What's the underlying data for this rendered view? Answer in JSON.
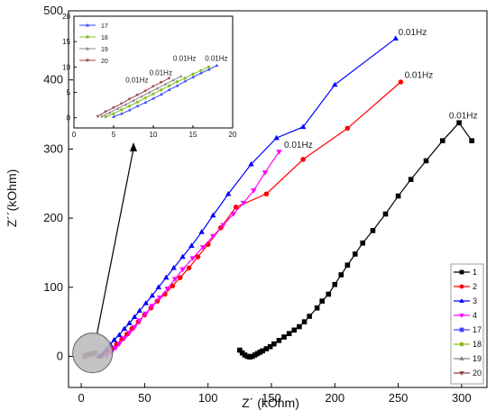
{
  "chart_data": {
    "type": "line",
    "xlabel": "Z´ (kOhm)",
    "ylabel": "Z´´(kOhm)",
    "xlim": [
      -10,
      320
    ],
    "ylim": [
      -45,
      500
    ],
    "xticks": [
      0,
      50,
      100,
      150,
      200,
      250,
      300
    ],
    "yticks": [
      0,
      100,
      200,
      300,
      400,
      500
    ],
    "legend_position": "bottom-right",
    "series": [
      {
        "name": "1",
        "color": "#000000",
        "marker": "square",
        "x": [
          125,
          127,
          129,
          131,
          133,
          135,
          137,
          139,
          141,
          143,
          146,
          149,
          152,
          156,
          160,
          164,
          168,
          172,
          176,
          180,
          186,
          190,
          195,
          200,
          205,
          210,
          216,
          222,
          230,
          240,
          250,
          260,
          272,
          285,
          298,
          308
        ],
        "y": [
          9,
          5,
          2,
          0,
          -1,
          0,
          2,
          4,
          6,
          8,
          11,
          14,
          18,
          23,
          28,
          33,
          38,
          43,
          50,
          58,
          70,
          80,
          90,
          104,
          118,
          132,
          148,
          164,
          182,
          206,
          232,
          256,
          283,
          312,
          338,
          312
        ]
      },
      {
        "name": "2",
        "color": "#ff0000",
        "marker": "circle",
        "x": [
          16,
          20,
          24,
          28,
          32,
          36,
          40,
          45,
          50,
          55,
          60,
          66,
          72,
          78,
          85,
          92,
          100,
          110,
          122,
          146,
          175,
          210,
          252
        ],
        "y": [
          1,
          6,
          12,
          18,
          25,
          32,
          40,
          50,
          60,
          70,
          80,
          90,
          102,
          114,
          128,
          144,
          162,
          186,
          216,
          235,
          285,
          330,
          397
        ]
      },
      {
        "name": "3",
        "color": "#0000ff",
        "marker": "triangle-up",
        "x": [
          14,
          17,
          20,
          23,
          26,
          30,
          34,
          38,
          42,
          46,
          51,
          56,
          61,
          67,
          73,
          80,
          87,
          95,
          104,
          116,
          134,
          154,
          175,
          200,
          248
        ],
        "y": [
          0,
          4,
          10,
          17,
          24,
          31,
          40,
          48,
          57,
          66,
          77,
          88,
          100,
          114,
          128,
          144,
          160,
          180,
          204,
          235,
          278,
          316,
          332,
          393,
          460
        ]
      },
      {
        "name": "4",
        "color": "#ff00ff",
        "marker": "triangle-down",
        "x": [
          20,
          24,
          27,
          30,
          34,
          38,
          42,
          46,
          51,
          56,
          62,
          68,
          74,
          80,
          88,
          96,
          104,
          112,
          120,
          128,
          136,
          145,
          156
        ],
        "y": [
          1,
          6,
          12,
          18,
          26,
          34,
          42,
          52,
          62,
          73,
          85,
          98,
          112,
          126,
          142,
          158,
          174,
          190,
          206,
          222,
          240,
          266,
          296
        ]
      },
      {
        "name": "17",
        "color": "#4444ff",
        "marker": "square",
        "x": [
          3,
          5,
          7,
          9,
          11
        ],
        "y": [
          0,
          2,
          3,
          4,
          5
        ]
      },
      {
        "name": "18",
        "color": "#88bb22",
        "marker": "circle",
        "x": [
          3,
          5,
          7,
          9,
          11
        ],
        "y": [
          0,
          2,
          3,
          4,
          5
        ]
      },
      {
        "name": "19",
        "color": "#888888",
        "marker": "triangle-up",
        "x": [
          3,
          5,
          7,
          9,
          11
        ],
        "y": [
          0,
          2,
          3,
          4,
          5
        ]
      },
      {
        "name": "20",
        "color": "#884444",
        "marker": "triangle-down",
        "x": [
          3,
          5,
          7,
          9,
          11
        ],
        "y": [
          0,
          2,
          3,
          4,
          5
        ]
      }
    ],
    "annotations": [
      {
        "text": "0.01Hz",
        "x": 250,
        "y": 465
      },
      {
        "text": "0.01Hz",
        "x": 255,
        "y": 403
      },
      {
        "text": "0.01Hz",
        "x": 290,
        "y": 344
      },
      {
        "text": "0.01Hz",
        "x": 160,
        "y": 302
      }
    ],
    "inset": {
      "xlim": [
        0,
        20
      ],
      "ylim": [
        -2,
        20
      ],
      "xticks": [
        0,
        5,
        10,
        15,
        20
      ],
      "yticks": [
        0,
        5,
        10,
        15,
        20
      ],
      "series": [
        {
          "name": "17",
          "color": "#3344ff",
          "marker": "triangle-up",
          "x": [
            5,
            6,
            7,
            8,
            9,
            10,
            11,
            12,
            13,
            14,
            15,
            16,
            17,
            18
          ],
          "y": [
            0.2,
            0.8,
            1.5,
            2.3,
            3.0,
            3.8,
            4.6,
            5.5,
            6.3,
            7.2,
            8.0,
            8.8,
            9.5,
            10.3
          ]
        },
        {
          "name": "18",
          "color": "#88bb22",
          "marker": "circle",
          "x": [
            4,
            5,
            6,
            7,
            8,
            9,
            10,
            11,
            12,
            13,
            14,
            15,
            16,
            17
          ],
          "y": [
            0.2,
            0.8,
            1.6,
            2.3,
            3.1,
            3.9,
            4.7,
            5.5,
            6.3,
            7.1,
            7.8,
            8.6,
            9.3,
            10.0
          ]
        },
        {
          "name": "19",
          "color": "#888888",
          "marker": "triangle-up",
          "x": [
            3.5,
            4.5,
            5.5,
            6.5,
            7.5,
            8.5,
            9.5,
            10.5,
            11.5,
            12.5,
            13.5
          ],
          "y": [
            0.3,
            1.0,
            1.8,
            2.6,
            3.4,
            4.2,
            5.0,
            5.8,
            6.6,
            7.4,
            8.2
          ]
        },
        {
          "name": "20",
          "color": "#994444",
          "marker": "triangle-down",
          "x": [
            3,
            4,
            5,
            6,
            7,
            8,
            9,
            10,
            11,
            12
          ],
          "y": [
            0.3,
            1.2,
            2.0,
            2.8,
            3.7,
            4.5,
            5.3,
            6.2,
            7.0,
            7.8
          ]
        }
      ],
      "annotations": [
        {
          "text": "0.01Hz",
          "x": 16.5,
          "y": 11.2
        },
        {
          "text": "0.01Hz",
          "x": 12.5,
          "y": 11.2
        },
        {
          "text": "0.01Hz",
          "x": 9.5,
          "y": 8.4
        },
        {
          "text": "0.01Hz",
          "x": 6.5,
          "y": 7.0
        }
      ]
    }
  }
}
